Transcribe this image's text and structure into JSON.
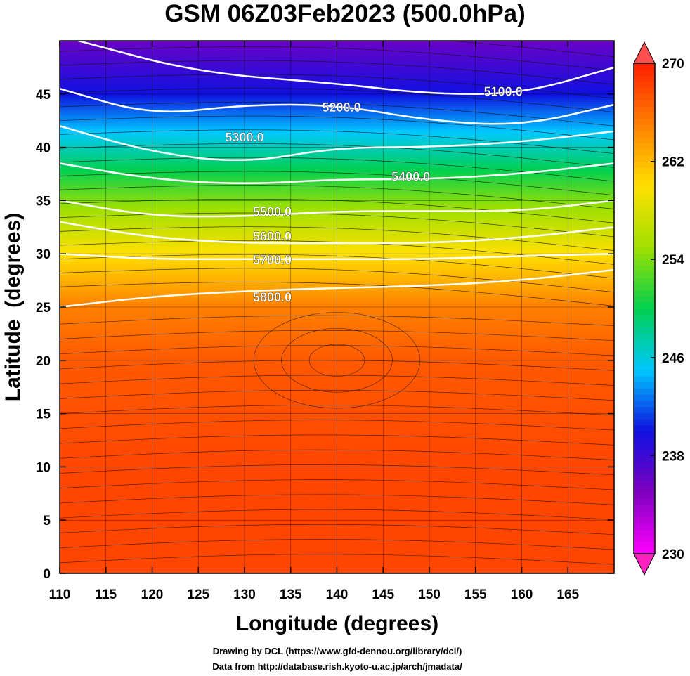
{
  "chart_data": {
    "type": "heatmap",
    "title": "GSM 06Z03Feb2023 (500.0hPa)",
    "xlabel": "Longitude (degrees)",
    "ylabel": "Latitude  (degrees)",
    "xlim": [
      110,
      170
    ],
    "ylim": [
      0,
      50
    ],
    "x_ticks": [
      110,
      115,
      120,
      125,
      130,
      135,
      140,
      145,
      150,
      155,
      160,
      165
    ],
    "y_ticks": [
      0,
      5,
      10,
      15,
      20,
      25,
      30,
      35,
      40,
      45
    ],
    "grid": true,
    "colorbar": {
      "min": 230,
      "max": 270,
      "ticks": [
        230,
        238,
        246,
        254,
        262,
        270
      ],
      "colors": [
        "#ff00ff",
        "#8000c0",
        "#1010e0",
        "#00c8ff",
        "#00d050",
        "#a0e000",
        "#ffe000",
        "#ff8000",
        "#ff2000"
      ],
      "extend": "both"
    },
    "fill_field": "temperature (K)",
    "temperature_profile": [
      {
        "lat": 50,
        "value": 236
      },
      {
        "lat": 45,
        "value": 240
      },
      {
        "lat": 40,
        "value": 247
      },
      {
        "lat": 35,
        "value": 254
      },
      {
        "lat": 30,
        "value": 260
      },
      {
        "lat": 25,
        "value": 265
      },
      {
        "lat": 20,
        "value": 267
      },
      {
        "lat": 10,
        "value": 268
      },
      {
        "lat": 0,
        "value": 268
      }
    ],
    "contours": [
      {
        "label": "5100.0",
        "points": [
          [
            112,
            50
          ],
          [
            125,
            47
          ],
          [
            140,
            46
          ],
          [
            150,
            45
          ],
          [
            160,
            45
          ],
          [
            170,
            47.5
          ]
        ]
      },
      {
        "label": "5200.0",
        "points": [
          [
            110,
            45.5
          ],
          [
            120,
            43
          ],
          [
            130,
            44
          ],
          [
            140,
            44
          ],
          [
            150,
            42.5
          ],
          [
            160,
            42
          ],
          [
            170,
            44
          ]
        ]
      },
      {
        "label": "5300.0",
        "points": [
          [
            110,
            42
          ],
          [
            120,
            39.5
          ],
          [
            130,
            38.5
          ],
          [
            140,
            40
          ],
          [
            150,
            40
          ],
          [
            160,
            40.5
          ],
          [
            170,
            41.5
          ]
        ]
      },
      {
        "label": "5400.0",
        "points": [
          [
            110,
            38.5
          ],
          [
            120,
            37
          ],
          [
            130,
            36.5
          ],
          [
            140,
            37
          ],
          [
            150,
            37
          ],
          [
            160,
            37.5
          ],
          [
            170,
            38.5
          ]
        ]
      },
      {
        "label": "5500.0",
        "points": [
          [
            110,
            35
          ],
          [
            120,
            33.5
          ],
          [
            130,
            33.5
          ],
          [
            140,
            34
          ],
          [
            150,
            34
          ],
          [
            160,
            34
          ],
          [
            170,
            35
          ]
        ]
      },
      {
        "label": "5600.0",
        "points": [
          [
            110,
            33
          ],
          [
            120,
            31.5
          ],
          [
            130,
            31
          ],
          [
            140,
            31
          ],
          [
            150,
            31
          ],
          [
            160,
            31.5
          ],
          [
            170,
            32.5
          ]
        ]
      },
      {
        "label": "5700.0",
        "points": [
          [
            110,
            30
          ],
          [
            120,
            29.5
          ],
          [
            130,
            29.5
          ],
          [
            140,
            29.5
          ],
          [
            150,
            29.5
          ],
          [
            160,
            29.8
          ],
          [
            170,
            30
          ]
        ]
      },
      {
        "label": "5800.0",
        "points": [
          [
            110,
            25
          ],
          [
            120,
            26
          ],
          [
            130,
            26.5
          ],
          [
            140,
            26.8
          ],
          [
            150,
            27
          ],
          [
            160,
            27.5
          ],
          [
            170,
            28.5
          ]
        ]
      }
    ],
    "contour_labels": [
      {
        "text": "5100.0",
        "lon": 158,
        "lat": 45.3
      },
      {
        "text": "5200.0",
        "lon": 140.5,
        "lat": 43.8
      },
      {
        "text": "5300.0",
        "lon": 130,
        "lat": 41
      },
      {
        "text": "5400.0",
        "lon": 148,
        "lat": 37.3
      },
      {
        "text": "5500.0",
        "lon": 133,
        "lat": 34
      },
      {
        "text": "5600.0",
        "lon": 133,
        "lat": 31.7
      },
      {
        "text": "5700.0",
        "lon": 133,
        "lat": 29.5
      },
      {
        "text": "5800.0",
        "lon": 133,
        "lat": 26
      }
    ]
  },
  "credits": {
    "line1": "Drawing by DCL (https://www.gfd-dennou.org/library/dcl/)",
    "line2": "Data from http://database.rish.kyoto-u.ac.jp/arch/jmadata/"
  }
}
